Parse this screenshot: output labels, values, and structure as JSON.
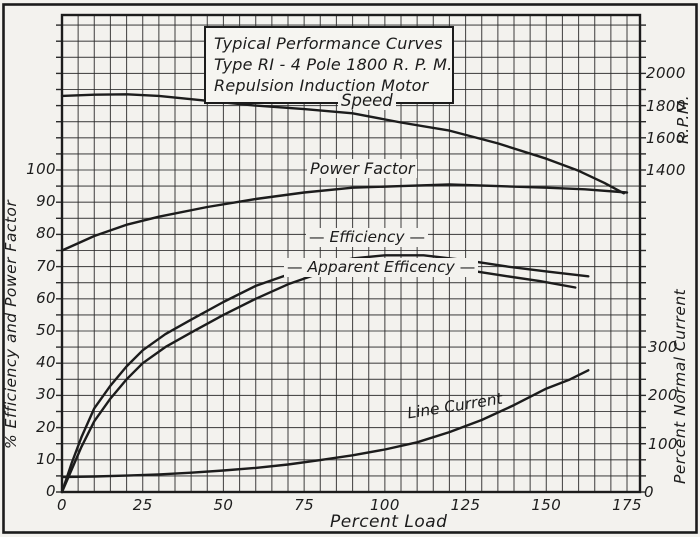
{
  "colors": {
    "ink": "#1c1c1c",
    "paper": "#f3f2ee",
    "grid": "#2a2a2a"
  },
  "chart_data": {
    "type": "line",
    "title": "Typical Performance Curves - Type RI - 4 Pole 1800 R.P.M. Repulsion Induction Motor",
    "title_lines": [
      "Typical Performance Curves",
      "Type RI - 4 Pole 1800 R. P. M.",
      "Repulsion Induction Motor"
    ],
    "legend_position": "inline-labels-on-curves",
    "grid": true,
    "x_axis": {
      "label": "Percent Load",
      "ticks": [
        0,
        25,
        50,
        75,
        100,
        125,
        150,
        175
      ],
      "range": [
        0,
        179
      ]
    },
    "y_axis_left": {
      "label": "% Efficiency and Power Factor",
      "ticks": [
        0,
        10,
        20,
        30,
        40,
        50,
        60,
        70,
        80,
        90,
        100
      ],
      "range": [
        0,
        148
      ]
    },
    "y_axis_right_rpm": {
      "label": "R.P.M.",
      "ticks": [
        1400,
        1600,
        1800,
        2000
      ],
      "range": [
        1400,
        2000
      ]
    },
    "y_axis_right_current": {
      "label": "Percent Normal Current",
      "ticks": [
        0,
        100,
        200,
        300
      ],
      "range": [
        0,
        300
      ]
    },
    "series": [
      {
        "name": "Speed",
        "scale": "rpm",
        "units": "R.P.M.",
        "points": [
          [
            0,
            1860
          ],
          [
            10,
            1868
          ],
          [
            20,
            1870
          ],
          [
            30,
            1860
          ],
          [
            45,
            1830
          ],
          [
            60,
            1800
          ],
          [
            75,
            1778
          ],
          [
            90,
            1752
          ],
          [
            105,
            1695
          ],
          [
            120,
            1645
          ],
          [
            135,
            1565
          ],
          [
            150,
            1470
          ],
          [
            160,
            1395
          ],
          [
            168,
            1320
          ],
          [
            174,
            1255
          ]
        ]
      },
      {
        "name": "Power Factor",
        "scale": "percent",
        "units": "%",
        "points": [
          [
            0,
            75
          ],
          [
            10,
            79.5
          ],
          [
            20,
            83
          ],
          [
            30,
            85.5
          ],
          [
            45,
            88.5
          ],
          [
            60,
            91
          ],
          [
            75,
            93
          ],
          [
            90,
            94.5
          ],
          [
            105,
            95
          ],
          [
            120,
            95.5
          ],
          [
            135,
            95
          ],
          [
            150,
            94.5
          ],
          [
            162,
            94
          ],
          [
            175,
            93
          ]
        ]
      },
      {
        "name": "Efficiency",
        "scale": "percent",
        "units": "%",
        "points": [
          [
            0,
            0
          ],
          [
            3,
            9
          ],
          [
            6,
            17
          ],
          [
            10,
            26
          ],
          [
            15,
            33
          ],
          [
            20,
            39
          ],
          [
            25,
            44
          ],
          [
            32,
            49
          ],
          [
            40,
            53.5
          ],
          [
            50,
            59
          ],
          [
            60,
            64
          ],
          [
            70,
            67.5
          ],
          [
            80,
            70.5
          ],
          [
            90,
            72.5
          ],
          [
            100,
            73.5
          ],
          [
            112,
            73.5
          ],
          [
            125,
            72
          ],
          [
            138,
            70
          ],
          [
            150,
            68.5
          ],
          [
            163,
            67
          ]
        ]
      },
      {
        "name": "Apparent Efficency",
        "scale": "percent",
        "units": "%",
        "points": [
          [
            0,
            0
          ],
          [
            3,
            7
          ],
          [
            6,
            14
          ],
          [
            10,
            22
          ],
          [
            15,
            29
          ],
          [
            20,
            35
          ],
          [
            25,
            40
          ],
          [
            32,
            45
          ],
          [
            40,
            49.5
          ],
          [
            50,
            55
          ],
          [
            60,
            60
          ],
          [
            70,
            64.5
          ],
          [
            80,
            68
          ],
          [
            90,
            70
          ],
          [
            100,
            71
          ],
          [
            112,
            70.8
          ],
          [
            125,
            69
          ],
          [
            138,
            67
          ],
          [
            148,
            65.5
          ],
          [
            159,
            63.5
          ]
        ]
      },
      {
        "name": "Line Current",
        "scale": "current",
        "units": "% normal current",
        "points": [
          [
            0,
            31
          ],
          [
            10,
            32
          ],
          [
            20,
            34
          ],
          [
            30,
            36.5
          ],
          [
            40,
            40
          ],
          [
            50,
            44.5
          ],
          [
            60,
            50
          ],
          [
            70,
            57
          ],
          [
            80,
            66
          ],
          [
            90,
            76
          ],
          [
            100,
            88
          ],
          [
            110,
            103
          ],
          [
            120,
            124
          ],
          [
            130,
            149
          ],
          [
            140,
            180
          ],
          [
            150,
            214
          ],
          [
            157,
            232
          ],
          [
            163,
            252
          ]
        ]
      }
    ]
  }
}
